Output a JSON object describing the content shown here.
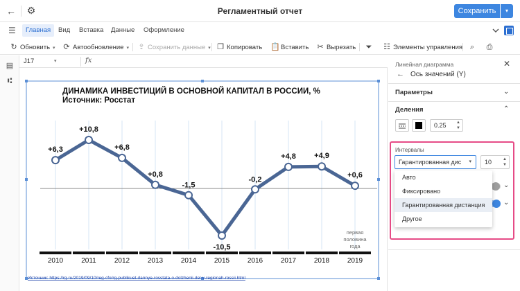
{
  "window": {
    "title": "Регламентный отчет",
    "save_label": "Сохранить"
  },
  "menu": {
    "tabs": [
      "Главная",
      "Вид",
      "Вставка",
      "Данные",
      "Оформление"
    ],
    "active": "Главная"
  },
  "toolbar": {
    "update": "Обновить",
    "autoupdate": "Автообновление",
    "save_data": "Сохранить данные",
    "copy": "Копировать",
    "paste": "Вставить",
    "cut": "Вырезать",
    "controls": "Элементы управления"
  },
  "formula": {
    "cell": "J17",
    "fx": "fx"
  },
  "chart_data": {
    "type": "line",
    "title": "ДИНАМИКА ИНВЕСТИЦИЙ В ОСНОВНОЙ КАПИТАЛ В РОССИИ, %",
    "subtitle": "Источник: Росстат",
    "categories": [
      "2010",
      "2011",
      "2012",
      "2013",
      "2014",
      "2015",
      "2016",
      "2017",
      "2018",
      "2019"
    ],
    "values": [
      6.3,
      10.8,
      6.8,
      0.8,
      -1.5,
      -10.5,
      -0.2,
      4.8,
      4.9,
      0.6
    ],
    "data_labels": [
      "+6,3",
      "+10,8",
      "+6,8",
      "+0,8",
      "-1,5",
      "-10,5",
      "-0,2",
      "+4,8",
      "+4,9",
      "+0,6"
    ],
    "note_2019": [
      "первая",
      "половина",
      "года"
    ],
    "source_link": "Источник: https://rg.ru/2019/09/10/reg-cfo/rg-publikuet-dannye-rosstata-o-dolzhenii-del-v-regionah-rossii.html",
    "line_color": "#4a6694"
  },
  "panel": {
    "subtitle": "Линейная диаграмма",
    "title": "Ось значений (Y)",
    "params": "Параметры",
    "divisions": "Деления",
    "line_width": "0.25",
    "intervals_label": "Интервалы",
    "interval_mode": "Гарантированная дис",
    "interval_value": "10",
    "options": [
      "Авто",
      "Фиксировано",
      "Гарантированная дистанция",
      "Другое"
    ],
    "selected_option": "Гарантированная дистанция"
  },
  "colors": {
    "accent": "#3d86e0",
    "highlight": "#e64b86"
  }
}
